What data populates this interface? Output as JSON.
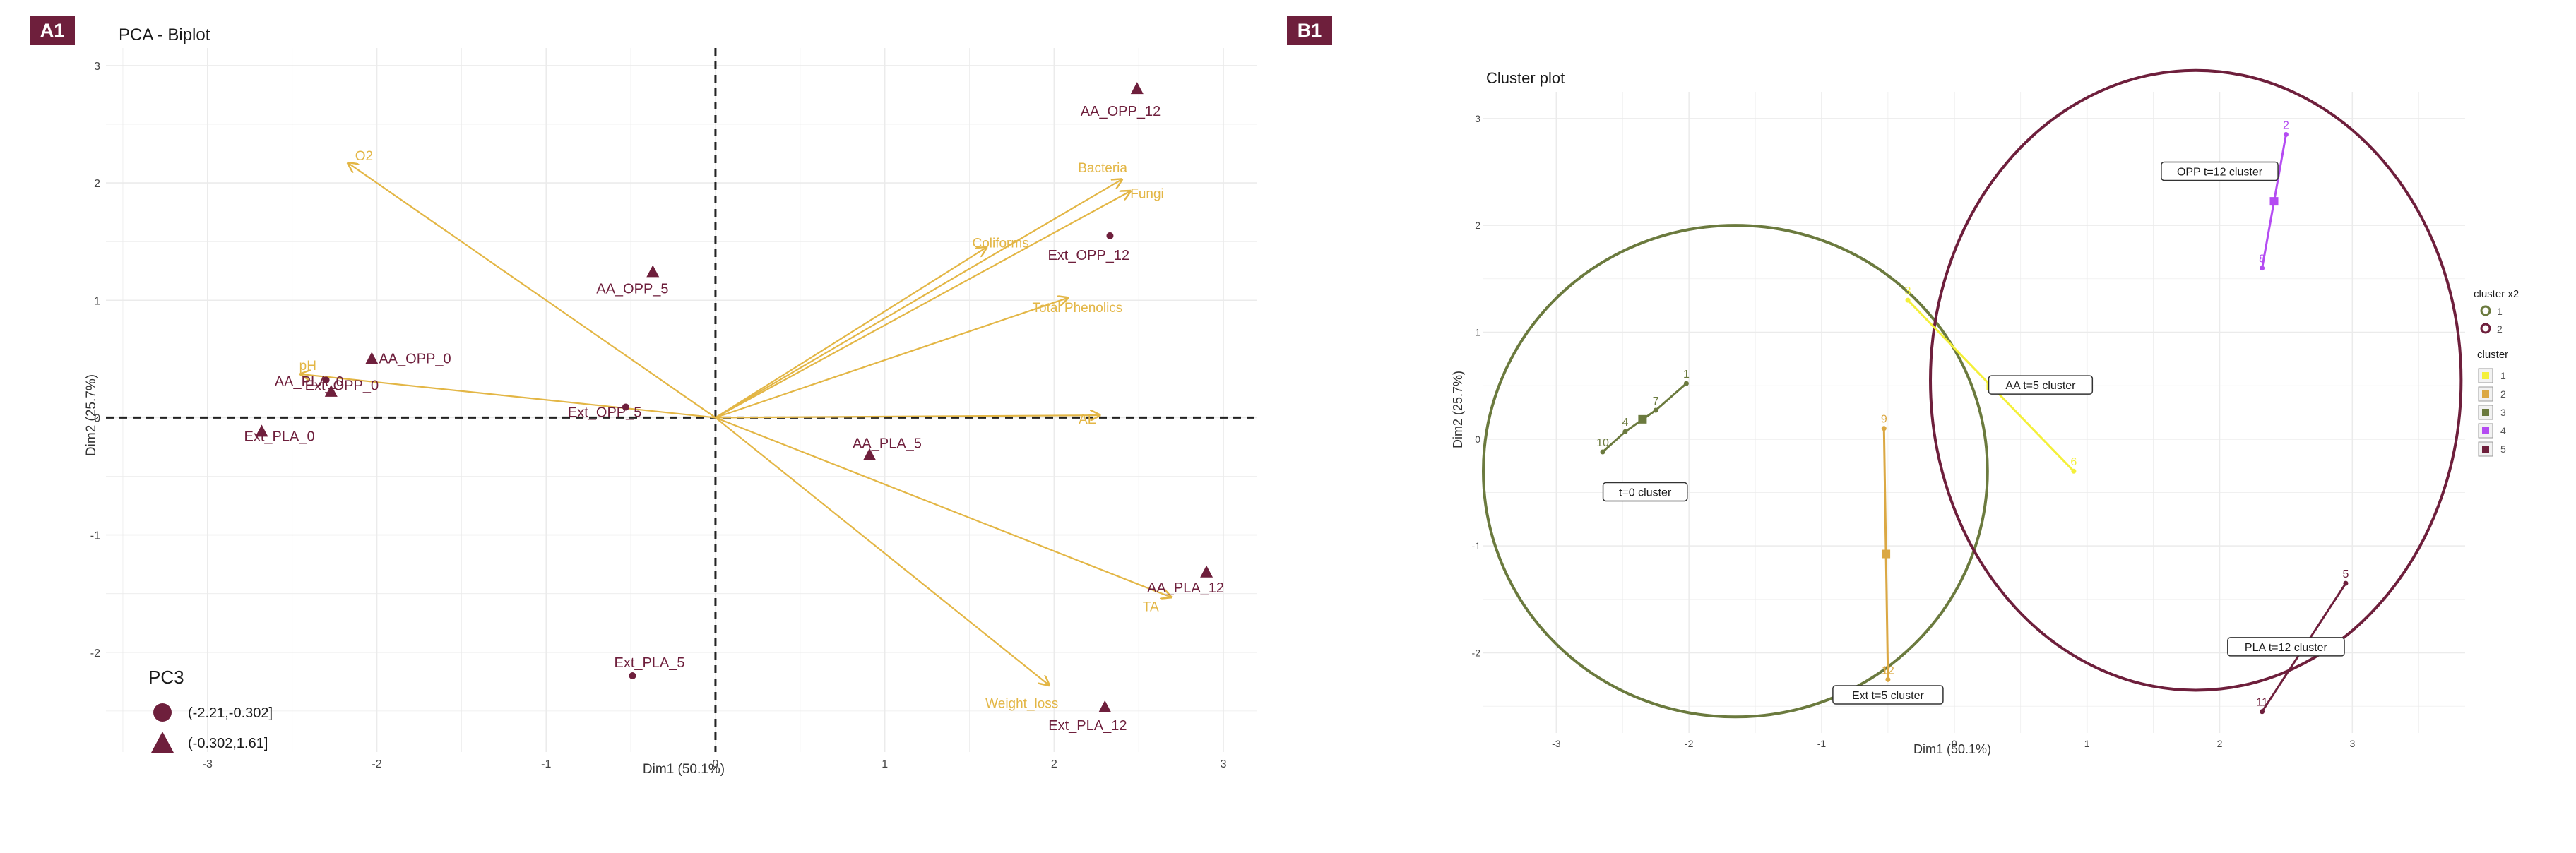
{
  "colors": {
    "maroon": "#6e1f3c",
    "gold": "#e3b645",
    "olive": "#6b7a3e",
    "yellow": "#f4f03a",
    "orange": "#dba843",
    "purple": "#b44bf2",
    "grid": "#ebebeb",
    "tag_bg": "#6e1f3c",
    "tag_text": "#ffffff"
  },
  "chart_data": [
    {
      "panel_tag": "A1",
      "type": "scatter",
      "title": "PCA - Biplot",
      "xlabel": "Dim1 (50.1%)",
      "ylabel": "Dim2 (25.7%)",
      "xlim": [
        -3.6,
        3.2
      ],
      "ylim": [
        -2.85,
        3.15
      ],
      "xticks": [
        -3,
        -2,
        -1,
        0,
        1,
        2,
        3
      ],
      "yticks": [
        -2,
        -1,
        0,
        1,
        2,
        3
      ],
      "grid": true,
      "legend": {
        "title": "PC3",
        "position": "bottom-left",
        "entries": [
          {
            "label": "(-2.21,-0.302]",
            "shape": "circle"
          },
          {
            "label": "(-0.302,1.61]",
            "shape": "triangle"
          }
        ]
      },
      "points": [
        {
          "label": "AA_OPP_12",
          "x": 2.49,
          "y": 2.8,
          "shape": "triangle"
        },
        {
          "label": "Ext_OPP_12",
          "x": 2.33,
          "y": 1.55,
          "shape": "circle"
        },
        {
          "label": "AA_OPP_5",
          "x": -0.37,
          "y": 1.24,
          "shape": "triangle"
        },
        {
          "label": "AA_OPP_0",
          "x": -2.03,
          "y": 0.5,
          "shape": "triangle"
        },
        {
          "label": "Ext_OPP_0",
          "x": -2.3,
          "y": 0.32,
          "shape": "circle"
        },
        {
          "label": "AA_PLA_0",
          "x": -2.27,
          "y": 0.22,
          "shape": "triangle"
        },
        {
          "label": "Ext_PLA_0",
          "x": -2.68,
          "y": -0.12,
          "shape": "triangle"
        },
        {
          "label": "Ext_OPP_5",
          "x": -0.53,
          "y": 0.09,
          "shape": "circle"
        },
        {
          "label": "AA_PLA_5",
          "x": 0.91,
          "y": -0.32,
          "shape": "triangle"
        },
        {
          "label": "AA_PLA_12",
          "x": 2.9,
          "y": -1.32,
          "shape": "triangle"
        },
        {
          "label": "Ext_PLA_5",
          "x": -0.49,
          "y": -2.2,
          "shape": "circle"
        },
        {
          "label": "Ext_PLA_12",
          "x": 2.3,
          "y": -2.47,
          "shape": "triangle"
        }
      ],
      "vectors": [
        {
          "label": "O2",
          "x": -2.17,
          "y": 2.17
        },
        {
          "label": "Bacteria",
          "x": 2.4,
          "y": 2.03
        },
        {
          "label": "Fungi",
          "x": 2.45,
          "y": 1.93
        },
        {
          "label": "Coliforms",
          "x": 1.6,
          "y": 1.45
        },
        {
          "label": "Total Phenolics",
          "x": 2.08,
          "y": 1.02
        },
        {
          "label": "pH",
          "x": -2.45,
          "y": 0.37
        },
        {
          "label": "AE",
          "x": 2.27,
          "y": 0.02
        },
        {
          "label": "Weight_loss",
          "x": 1.97,
          "y": -2.28
        },
        {
          "label": "TA",
          "x": 2.69,
          "y": -1.53
        }
      ]
    },
    {
      "panel_tag": "B1",
      "type": "scatter",
      "title": "Cluster plot",
      "xlabel": "Dim1 (50.1%)",
      "ylabel": "Dim2 (25.7%)",
      "xlim": [
        -3.55,
        3.85
      ],
      "ylim": [
        -2.75,
        3.25
      ],
      "xticks": [
        -3,
        -2,
        -1,
        0,
        1,
        2,
        3
      ],
      "yticks": [
        -2,
        -1,
        0,
        1,
        2,
        3
      ],
      "grid": true,
      "legend": {
        "position": "right",
        "ellipse_title": "cluster x2",
        "ellipse_entries": [
          "1",
          "2"
        ],
        "cluster_title": "cluster",
        "cluster_entries": [
          "1",
          "2",
          "3",
          "4",
          "5"
        ]
      },
      "ellipses": [
        {
          "name": "1",
          "cx": -1.65,
          "cy": -0.3,
          "rx": 1.9,
          "ry": 2.3
        },
        {
          "name": "2",
          "cx": 1.82,
          "cy": 0.55,
          "rx": 2.0,
          "ry": 2.9
        }
      ],
      "clusters": [
        {
          "name": "1",
          "points": [
            {
              "label": "3",
              "x": -0.35,
              "y": 1.3
            },
            {
              "label": "6",
              "x": 0.9,
              "y": -0.3
            }
          ]
        },
        {
          "name": "2",
          "points": [
            {
              "label": "9",
              "x": -0.53,
              "y": 0.1
            },
            {
              "label": "12",
              "x": -0.5,
              "y": -2.25
            }
          ]
        },
        {
          "name": "3",
          "points": [
            {
              "label": "1",
              "x": -2.02,
              "y": 0.52
            },
            {
              "label": "7",
              "x": -2.25,
              "y": 0.27
            },
            {
              "label": "4",
              "x": -2.48,
              "y": 0.07
            },
            {
              "label": "10",
              "x": -2.65,
              "y": -0.12
            }
          ]
        },
        {
          "name": "4",
          "points": [
            {
              "label": "2",
              "x": 2.5,
              "y": 2.85
            },
            {
              "label": "8",
              "x": 2.32,
              "y": 1.6
            }
          ]
        },
        {
          "name": "5",
          "points": [
            {
              "label": "5",
              "x": 2.95,
              "y": -1.35
            },
            {
              "label": "11",
              "x": 2.32,
              "y": -2.55
            }
          ]
        }
      ],
      "annotations": [
        {
          "label": "OPP t=12 cluster",
          "x": 2.0,
          "y": 2.5
        },
        {
          "label": "AA t=5 cluster",
          "x": 0.65,
          "y": 0.5
        },
        {
          "label": "t=0 cluster",
          "x": -2.33,
          "y": -0.5
        },
        {
          "label": "PLA t=12 cluster",
          "x": 2.5,
          "y": -1.95
        },
        {
          "label": "Ext t=5 cluster",
          "x": -0.5,
          "y": -2.4
        }
      ]
    }
  ]
}
